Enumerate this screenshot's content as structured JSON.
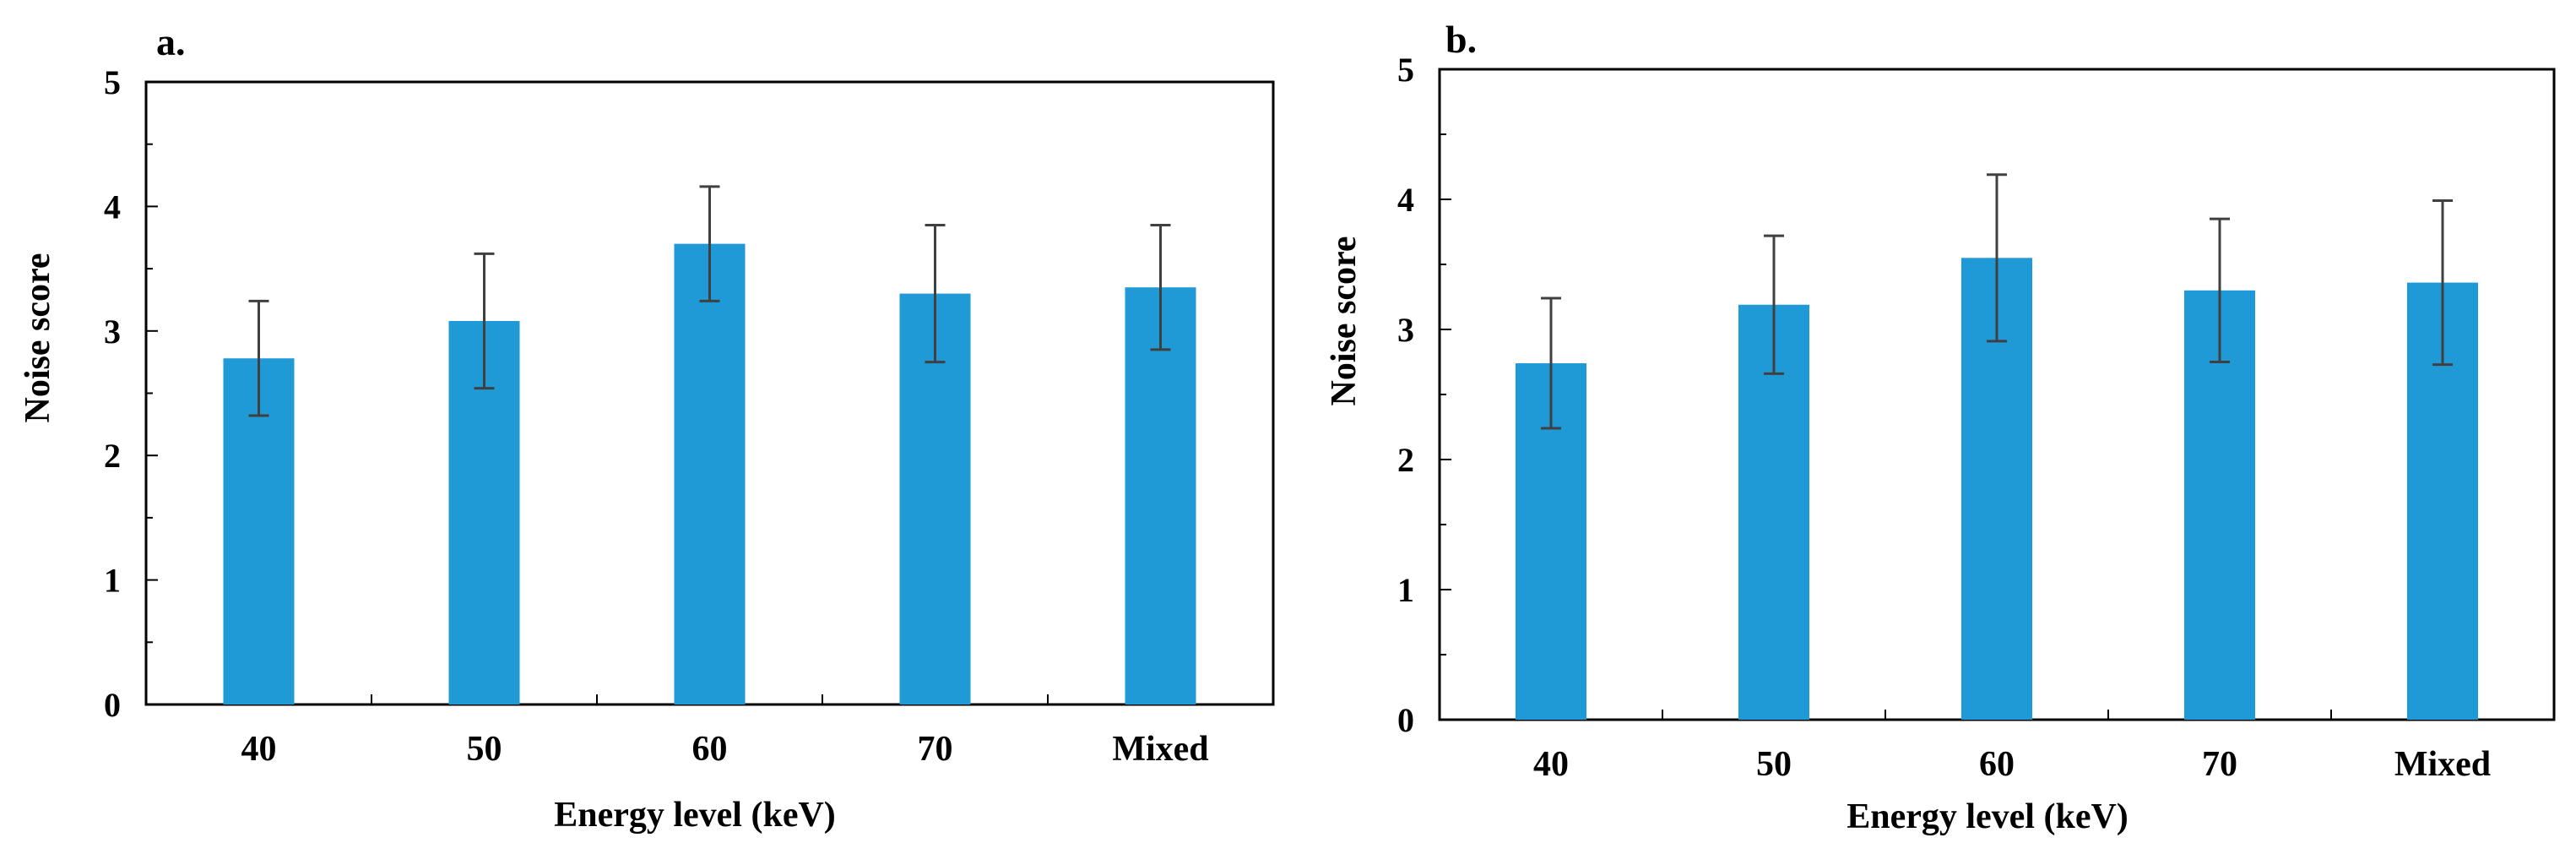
{
  "chart_data": [
    {
      "type": "bar",
      "panel_label": "a.",
      "title": "",
      "xlabel": "Energy level (keV)",
      "ylabel": "Noise score",
      "categories": [
        "40",
        "50",
        "60",
        "70",
        "Mixed"
      ],
      "values": [
        2.78,
        3.08,
        3.7,
        3.3,
        3.35
      ],
      "error": [
        0.46,
        0.54,
        0.46,
        0.55,
        0.5
      ],
      "ylim": [
        0,
        5
      ],
      "yticks": [
        "0",
        "1",
        "2",
        "3",
        "4",
        "5"
      ],
      "grid": false,
      "bar_color": "#1f9ad6",
      "error_color": "#404040"
    },
    {
      "type": "bar",
      "panel_label": "b.",
      "title": "",
      "xlabel": "Energy level (keV)",
      "ylabel": "Noise score",
      "categories": [
        "40",
        "50",
        "60",
        "70",
        "Mixed"
      ],
      "values": [
        2.74,
        3.19,
        3.55,
        3.3,
        3.36
      ],
      "error": [
        0.5,
        0.53,
        0.64,
        0.55,
        0.63
      ],
      "ylim": [
        0,
        5
      ],
      "yticks": [
        "0",
        "1",
        "2",
        "3",
        "4",
        "5"
      ],
      "grid": false,
      "bar_color": "#1f9ad6",
      "error_color": "#404040"
    }
  ]
}
